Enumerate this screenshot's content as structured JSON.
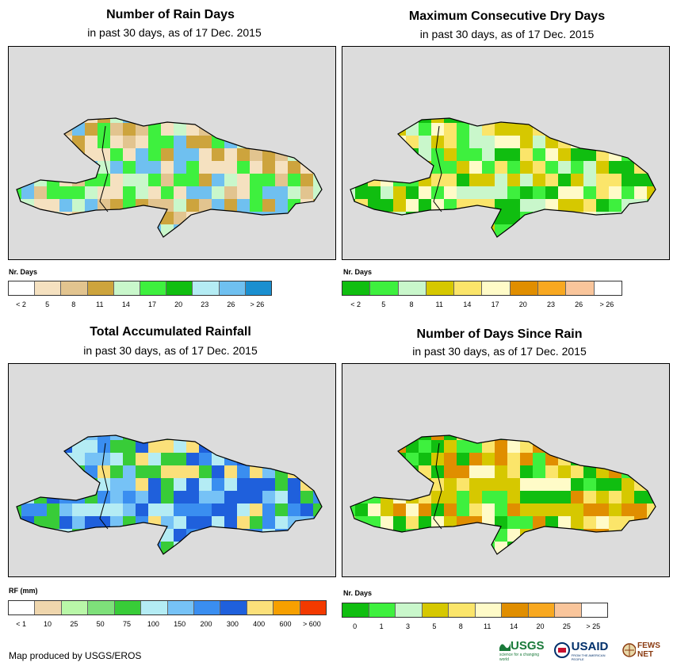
{
  "panels": [
    {
      "id": "rain-days",
      "title": "Number of Rain Days",
      "subtitle": "in past 30 days, as of 17 Dec. 2015",
      "unit": "Nr. Days",
      "legend_colors": [
        "#ffffff",
        "#f5e1c0",
        "#e2c48f",
        "#cda43d",
        "#c9f7cb",
        "#3ef03e",
        "#10be10",
        "#b4ecf4",
        "#6fc0f0",
        "#1a8fd0"
      ],
      "legend_labels": [
        "< 2",
        "5",
        "8",
        "11",
        "14",
        "17",
        "20",
        "23",
        "26",
        "> 26"
      ]
    },
    {
      "id": "max-dry-days",
      "title": "Maximum Consecutive Dry Days",
      "subtitle": "in past 30 days, as of 17 Dec. 2015",
      "unit": "Nr. Days",
      "legend_colors": [
        "#10be10",
        "#3ef03e",
        "#c9f7cb",
        "#d6c800",
        "#fbe56a",
        "#fffbc8",
        "#e08e00",
        "#f8a820",
        "#f9c59b",
        "#ffffff"
      ],
      "legend_labels": [
        "< 2",
        "5",
        "8",
        "11",
        "14",
        "17",
        "20",
        "23",
        "26",
        "> 26"
      ]
    },
    {
      "id": "total-rainfall",
      "title": "Total Accumulated Rainfall",
      "subtitle": "in past 30 days, as of 17 Dec. 2015",
      "unit": "RF (mm)",
      "legend_colors": [
        "#ffffff",
        "#efd6ad",
        "#b9f7a8",
        "#7ee07a",
        "#38cc38",
        "#b4ecf4",
        "#76c2f6",
        "#3a8ef0",
        "#1f60dc",
        "#fbe07a",
        "#f7a000",
        "#f33a00"
      ],
      "legend_labels": [
        "< 1",
        "10",
        "25",
        "50",
        "75",
        "100",
        "150",
        "200",
        "300",
        "400",
        "600",
        "> 600"
      ]
    },
    {
      "id": "days-since-rain",
      "title": "Number of Days Since Rain",
      "subtitle": "in past 30 days, as of 17 Dec. 2015",
      "unit": "Nr. Days",
      "legend_colors": [
        "#10be10",
        "#3ef03e",
        "#c9f7cb",
        "#d6c800",
        "#fbe56a",
        "#fffbc8",
        "#e08e00",
        "#f8a820",
        "#f9c59b",
        "#ffffff"
      ],
      "legend_labels": [
        "0",
        "1",
        "3",
        "5",
        "8",
        "11",
        "14",
        "20",
        "25",
        "> 25"
      ]
    }
  ],
  "credit": "Map produced by USGS/EROS",
  "logos": {
    "usgs": "USGS",
    "usgs_tagline": "science for a changing world",
    "usaid": "USAID",
    "usaid_tagline": "FROM THE AMERICAN PEOPLE",
    "fewsnet": "FEWS NET"
  }
}
